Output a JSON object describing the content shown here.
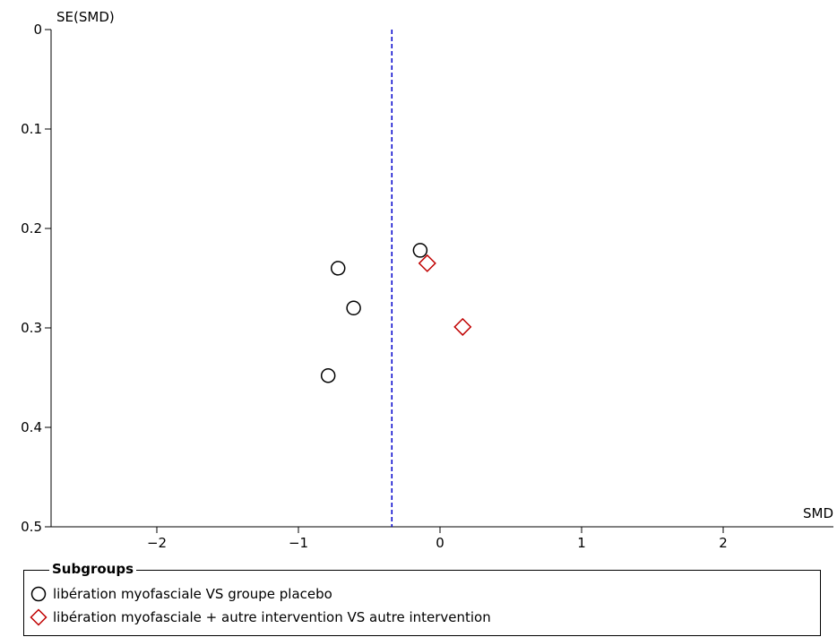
{
  "chart_data": {
    "type": "scatter",
    "title": "",
    "xlabel": "SMD",
    "ylabel": "SE(SMD)",
    "xlim": [
      -2.75,
      2.75
    ],
    "ylim": [
      0,
      0.5
    ],
    "y_reversed": true,
    "x_ticks": [
      -2,
      -1,
      0,
      1,
      2
    ],
    "x_tick_labels": [
      "-2",
      "-1",
      "0",
      "1",
      "2"
    ],
    "y_ticks": [
      0,
      0.1,
      0.2,
      0.3,
      0.4,
      0.5
    ],
    "y_tick_labels": [
      "0",
      "0.1",
      "0.2",
      "0.3",
      "0.4",
      "0.5"
    ],
    "reference_line": {
      "x": -0.34,
      "style": "dashed",
      "color": "#0000cc"
    },
    "grid": false,
    "series": [
      {
        "name": "libération myofasciale VS groupe placebo",
        "marker": "circle",
        "color": "#000000",
        "points": [
          {
            "x": -0.14,
            "y": 0.222
          },
          {
            "x": -0.72,
            "y": 0.24
          },
          {
            "x": -0.61,
            "y": 0.28
          },
          {
            "x": -0.79,
            "y": 0.348
          }
        ]
      },
      {
        "name": "libération myofasciale + autre intervention VS autre intervention",
        "marker": "diamond",
        "color": "#c00000",
        "points": [
          {
            "x": -0.09,
            "y": 0.235
          },
          {
            "x": 0.16,
            "y": 0.299
          }
        ]
      }
    ],
    "legend_title": "Subgroups",
    "legend_position": "bottom"
  }
}
